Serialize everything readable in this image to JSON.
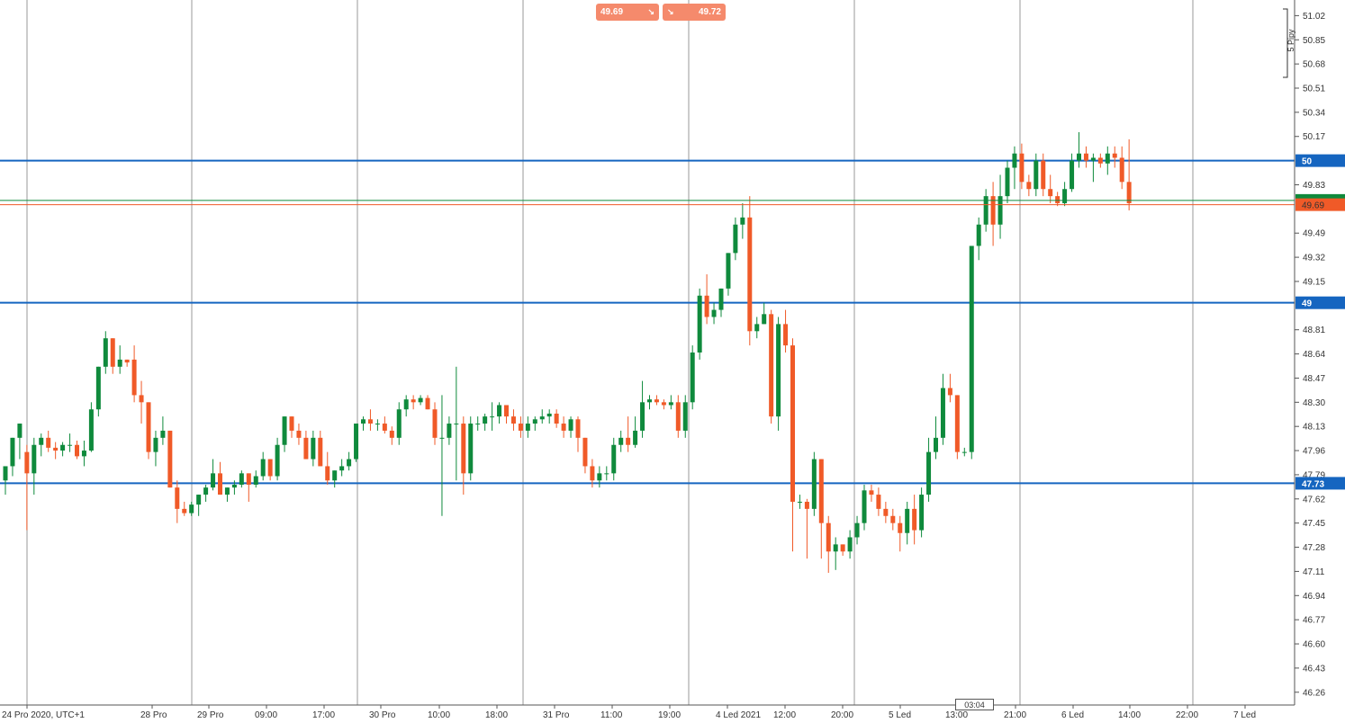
{
  "quote": {
    "bid": "49.69",
    "ask": "49.72",
    "bid_arrow": "↘",
    "ask_arrow": "↘"
  },
  "cursor_time": "03:04",
  "scale_label": "5 Pipy",
  "chart_data": {
    "type": "candlestick",
    "x_labels": [
      "24 Pro 2020, UTC+1",
      "28 Pro",
      "29 Pro",
      "09:00",
      "17:00",
      "30 Pro",
      "10:00",
      "18:00",
      "31 Pro",
      "11:00",
      "19:00",
      "4 Led 2021",
      "12:00",
      "20:00",
      "5 Led",
      "13:00",
      "21:00",
      "6 Led",
      "14:00",
      "22:00",
      "7 Led"
    ],
    "y_ticks": [
      "51.02",
      "50.85",
      "50.68",
      "50.51",
      "50.34",
      "50.17",
      "49.83",
      "49.49",
      "49.32",
      "49.15",
      "48.81",
      "48.64",
      "48.47",
      "48.30",
      "48.13",
      "47.96",
      "47.79",
      "47.62",
      "47.45",
      "47.28",
      "47.11",
      "46.94",
      "46.77",
      "46.60",
      "46.43",
      "46.26"
    ],
    "ylim": [
      46.17,
      51.13
    ],
    "horizontal_levels": [
      {
        "value": 50,
        "label": "50",
        "color": "#1565c0"
      },
      {
        "value": 49,
        "label": "49",
        "color": "#1565c0"
      },
      {
        "value": 47.73,
        "label": "47.73",
        "color": "#1565c0"
      }
    ],
    "price_lines": [
      {
        "value": 49.72,
        "label": "",
        "color": "#0f8a3c"
      },
      {
        "value": 49.69,
        "label": "49.69",
        "color": "#f05a28"
      }
    ],
    "up_color": "#0f8a3c",
    "down_color": "#f05a28",
    "candles": [
      [
        47.75,
        47.85,
        47.65,
        47.85
      ],
      [
        47.85,
        48.05,
        47.78,
        48.05
      ],
      [
        48.05,
        48.15,
        47.9,
        48.15
      ],
      [
        47.95,
        48.0,
        47.4,
        47.8
      ],
      [
        47.8,
        48.05,
        47.65,
        48.0
      ],
      [
        48.0,
        48.08,
        47.92,
        48.05
      ],
      [
        48.05,
        48.1,
        47.95,
        47.98
      ],
      [
        47.98,
        48.02,
        47.9,
        47.96
      ],
      [
        47.96,
        48.02,
        47.92,
        48.0
      ],
      [
        48.0,
        48.08,
        47.95,
        48.0
      ],
      [
        48.0,
        48.03,
        47.9,
        47.92
      ],
      [
        47.92,
        48.03,
        47.85,
        47.96
      ],
      [
        47.96,
        48.3,
        47.95,
        48.25
      ],
      [
        48.25,
        48.55,
        48.2,
        48.55
      ],
      [
        48.55,
        48.8,
        48.5,
        48.75
      ],
      [
        48.75,
        48.75,
        48.5,
        48.55
      ],
      [
        48.55,
        48.7,
        48.5,
        48.6
      ],
      [
        48.6,
        48.6,
        48.55,
        48.58
      ],
      [
        48.6,
        48.7,
        48.3,
        48.35
      ],
      [
        48.35,
        48.45,
        48.15,
        48.3
      ],
      [
        48.3,
        48.3,
        47.9,
        47.95
      ],
      [
        47.95,
        48.1,
        47.85,
        48.05
      ],
      [
        48.05,
        48.2,
        48.0,
        48.1
      ],
      [
        48.1,
        48.1,
        47.7,
        47.7
      ],
      [
        47.7,
        47.75,
        47.45,
        47.55
      ],
      [
        47.55,
        47.6,
        47.5,
        47.52
      ],
      [
        47.52,
        47.6,
        47.5,
        47.58
      ],
      [
        47.58,
        47.65,
        47.5,
        47.65
      ],
      [
        47.65,
        47.72,
        47.6,
        47.7
      ],
      [
        47.7,
        47.9,
        47.68,
        47.8
      ],
      [
        47.8,
        47.88,
        47.65,
        47.65
      ],
      [
        47.65,
        47.7,
        47.6,
        47.7
      ],
      [
        47.7,
        47.75,
        47.65,
        47.72
      ],
      [
        47.72,
        47.82,
        47.7,
        47.8
      ],
      [
        47.8,
        47.8,
        47.6,
        47.72
      ],
      [
        47.72,
        47.82,
        47.7,
        47.78
      ],
      [
        47.78,
        47.95,
        47.75,
        47.9
      ],
      [
        47.9,
        47.9,
        47.75,
        47.78
      ],
      [
        47.78,
        48.05,
        47.75,
        48.0
      ],
      [
        48.0,
        48.2,
        47.95,
        48.2
      ],
      [
        48.2,
        48.2,
        48.05,
        48.1
      ],
      [
        48.1,
        48.15,
        48.0,
        48.05
      ],
      [
        48.05,
        48.1,
        47.9,
        47.9
      ],
      [
        47.9,
        48.1,
        47.85,
        48.05
      ],
      [
        48.05,
        48.1,
        47.85,
        47.85
      ],
      [
        47.85,
        47.95,
        47.72,
        47.75
      ],
      [
        47.75,
        47.82,
        47.7,
        47.82
      ],
      [
        47.82,
        47.9,
        47.78,
        47.85
      ],
      [
        47.85,
        47.95,
        47.82,
        47.9
      ],
      [
        47.9,
        48.15,
        47.88,
        48.15
      ],
      [
        48.15,
        48.2,
        48.1,
        48.18
      ],
      [
        48.18,
        48.25,
        48.1,
        48.15
      ],
      [
        48.15,
        48.18,
        48.1,
        48.15
      ],
      [
        48.15,
        48.2,
        48.08,
        48.1
      ],
      [
        48.1,
        48.13,
        48.0,
        48.05
      ],
      [
        48.05,
        48.3,
        48.0,
        48.25
      ],
      [
        48.25,
        48.35,
        48.2,
        48.32
      ],
      [
        48.32,
        48.35,
        48.25,
        48.3
      ],
      [
        48.3,
        48.35,
        48.28,
        48.33
      ],
      [
        48.33,
        48.35,
        48.25,
        48.25
      ],
      [
        48.25,
        48.3,
        48.0,
        48.05
      ],
      [
        48.05,
        48.35,
        47.5,
        48.05
      ],
      [
        48.05,
        48.2,
        48.0,
        48.15
      ],
      [
        48.15,
        48.55,
        47.75,
        48.15
      ],
      [
        48.15,
        48.2,
        47.65,
        47.8
      ],
      [
        47.8,
        48.2,
        47.75,
        48.15
      ],
      [
        48.15,
        48.2,
        48.1,
        48.15
      ],
      [
        48.15,
        48.22,
        48.1,
        48.2
      ],
      [
        48.2,
        48.3,
        48.1,
        48.2
      ],
      [
        48.2,
        48.3,
        48.15,
        48.28
      ],
      [
        48.28,
        48.28,
        48.15,
        48.2
      ],
      [
        48.2,
        48.25,
        48.1,
        48.15
      ],
      [
        48.15,
        48.2,
        48.05,
        48.1
      ],
      [
        48.1,
        48.2,
        48.05,
        48.15
      ],
      [
        48.15,
        48.2,
        48.1,
        48.18
      ],
      [
        48.18,
        48.25,
        48.15,
        48.2
      ],
      [
        48.2,
        48.25,
        48.15,
        48.22
      ],
      [
        48.22,
        48.25,
        48.12,
        48.15
      ],
      [
        48.15,
        48.2,
        48.05,
        48.1
      ],
      [
        48.1,
        48.2,
        48.05,
        48.18
      ],
      [
        48.18,
        48.2,
        47.95,
        48.05
      ],
      [
        48.05,
        48.05,
        47.8,
        47.85
      ],
      [
        47.85,
        47.9,
        47.7,
        47.75
      ],
      [
        47.75,
        47.85,
        47.7,
        47.8
      ],
      [
        47.8,
        47.85,
        47.75,
        47.8
      ],
      [
        47.8,
        48.05,
        47.75,
        48.0
      ],
      [
        48.0,
        48.1,
        47.95,
        48.05
      ],
      [
        48.05,
        48.2,
        47.95,
        48.0
      ],
      [
        48.0,
        48.2,
        47.98,
        48.1
      ],
      [
        48.1,
        48.45,
        48.05,
        48.3
      ],
      [
        48.3,
        48.35,
        48.25,
        48.32
      ],
      [
        48.32,
        48.35,
        48.28,
        48.3
      ],
      [
        48.3,
        48.32,
        48.25,
        48.28
      ],
      [
        48.28,
        48.35,
        48.25,
        48.3
      ],
      [
        48.3,
        48.35,
        48.05,
        48.1
      ],
      [
        48.1,
        48.35,
        48.05,
        48.3
      ],
      [
        48.3,
        48.7,
        48.25,
        48.65
      ],
      [
        48.65,
        49.1,
        48.6,
        49.05
      ],
      [
        49.05,
        49.2,
        48.85,
        48.9
      ],
      [
        48.9,
        49.0,
        48.85,
        48.95
      ],
      [
        48.95,
        49.1,
        48.9,
        49.1
      ],
      [
        49.1,
        49.35,
        49.05,
        49.35
      ],
      [
        49.35,
        49.6,
        49.3,
        49.55
      ],
      [
        49.55,
        49.7,
        49.45,
        49.6
      ],
      [
        49.6,
        49.75,
        48.7,
        48.8
      ],
      [
        48.8,
        48.9,
        48.75,
        48.85
      ],
      [
        48.85,
        49.0,
        48.85,
        48.92
      ],
      [
        48.92,
        48.95,
        48.15,
        48.2
      ],
      [
        48.2,
        48.9,
        48.1,
        48.85
      ],
      [
        48.85,
        48.95,
        48.65,
        48.7
      ],
      [
        48.7,
        48.75,
        47.25,
        47.6
      ],
      [
        47.6,
        47.65,
        47.55,
        47.6
      ],
      [
        47.6,
        47.62,
        47.2,
        47.55
      ],
      [
        47.55,
        47.95,
        47.5,
        47.9
      ],
      [
        47.9,
        47.9,
        47.2,
        47.45
      ],
      [
        47.45,
        47.5,
        47.1,
        47.25
      ],
      [
        47.25,
        47.35,
        47.12,
        47.3
      ],
      [
        47.3,
        47.3,
        47.22,
        47.25
      ],
      [
        47.25,
        47.4,
        47.2,
        47.35
      ],
      [
        47.35,
        47.5,
        47.3,
        47.45
      ],
      [
        47.45,
        47.72,
        47.4,
        47.68
      ],
      [
        47.68,
        47.72,
        47.6,
        47.65
      ],
      [
        47.65,
        47.7,
        47.5,
        47.55
      ],
      [
        47.55,
        47.6,
        47.45,
        47.5
      ],
      [
        47.5,
        47.55,
        47.4,
        47.45
      ],
      [
        47.45,
        47.5,
        47.25,
        47.38
      ],
      [
        47.38,
        47.6,
        47.3,
        47.55
      ],
      [
        47.55,
        47.65,
        47.3,
        47.4
      ],
      [
        47.4,
        47.7,
        47.35,
        47.65
      ],
      [
        47.65,
        48.05,
        47.6,
        47.95
      ],
      [
        47.95,
        48.2,
        47.9,
        48.05
      ],
      [
        48.05,
        48.5,
        48.0,
        48.4
      ],
      [
        48.4,
        48.5,
        48.3,
        48.35
      ],
      [
        48.35,
        48.35,
        47.9,
        47.95
      ],
      [
        47.95,
        47.98,
        47.92,
        47.95
      ],
      [
        47.95,
        49.4,
        47.9,
        49.4
      ],
      [
        49.4,
        49.6,
        49.3,
        49.55
      ],
      [
        49.55,
        49.8,
        49.5,
        49.75
      ],
      [
        49.75,
        49.85,
        49.4,
        49.55
      ],
      [
        49.55,
        49.9,
        49.45,
        49.75
      ],
      [
        49.75,
        50.0,
        49.7,
        49.95
      ],
      [
        49.95,
        50.1,
        49.8,
        50.05
      ],
      [
        50.05,
        50.12,
        49.8,
        49.85
      ],
      [
        49.85,
        49.9,
        49.75,
        49.8
      ],
      [
        49.8,
        50.05,
        49.75,
        50.0
      ],
      [
        50.0,
        50.05,
        49.75,
        49.8
      ],
      [
        49.8,
        49.9,
        49.7,
        49.75
      ],
      [
        49.75,
        49.78,
        49.68,
        49.7
      ],
      [
        49.7,
        49.85,
        49.68,
        49.8
      ],
      [
        49.8,
        50.05,
        49.78,
        50.0
      ],
      [
        50.0,
        50.2,
        49.95,
        50.05
      ],
      [
        50.05,
        50.1,
        49.95,
        50.0
      ],
      [
        50.0,
        50.05,
        49.85,
        50.02
      ],
      [
        50.02,
        50.05,
        49.95,
        49.98
      ],
      [
        49.98,
        50.1,
        49.9,
        50.05
      ],
      [
        50.05,
        50.1,
        49.95,
        50.02
      ],
      [
        50.02,
        50.1,
        49.8,
        49.85
      ],
      [
        49.85,
        50.15,
        49.65,
        49.7
      ]
    ]
  }
}
